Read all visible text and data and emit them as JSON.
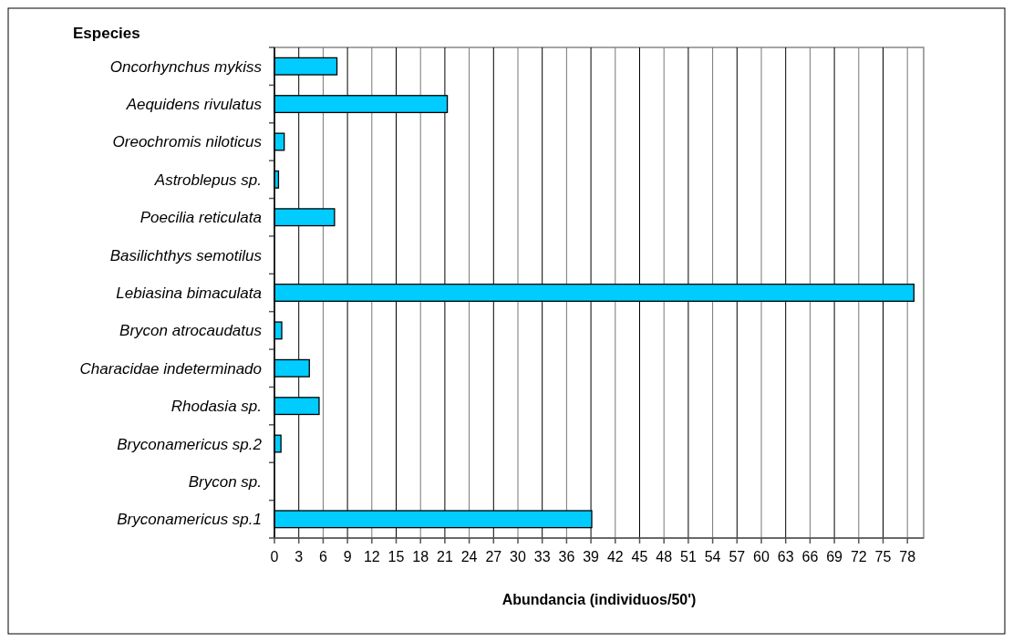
{
  "chart_data": {
    "type": "bar",
    "orientation": "horizontal",
    "title": "Especies",
    "xlabel": "Abundancia (individuos/50')",
    "categories": [
      "Oncorhynchus mykiss",
      "Aequidens rivulatus",
      "Oreochromis niloticus",
      "Astroblepus sp.",
      "Poecilia reticulata",
      "Basilichthys semotilus",
      "Lebiasina bimaculata",
      "Brycon atrocaudatus",
      "Characidae indeterminado",
      "Rhodasia sp.",
      "Bryconamericus sp.2",
      "Brycon sp.",
      "Bryconamericus sp.1"
    ],
    "values": [
      7.7,
      21.3,
      1.2,
      0.5,
      7.4,
      0,
      78.8,
      0.9,
      4.3,
      5.5,
      0.8,
      0,
      39.1
    ],
    "color": "#00ccff",
    "xlim": [
      0,
      80
    ],
    "xticks": [
      0,
      3,
      6,
      9,
      12,
      15,
      18,
      21,
      24,
      27,
      30,
      33,
      36,
      39,
      42,
      45,
      48,
      51,
      54,
      57,
      60,
      63,
      66,
      69,
      72,
      75,
      78
    ],
    "grid": "x"
  }
}
